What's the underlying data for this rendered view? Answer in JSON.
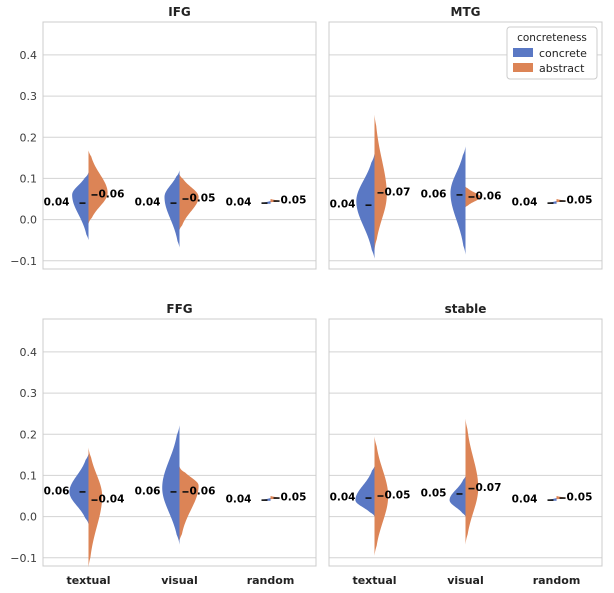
{
  "chart_data": {
    "type": "violin",
    "split_by": "concreteness",
    "categories": [
      "textual",
      "visual",
      "random"
    ],
    "ylim": [
      -0.12,
      0.48
    ],
    "yticks": [
      -0.1,
      0.0,
      0.1,
      0.2,
      0.3,
      0.4
    ],
    "ytick_labels": [
      "−0.1",
      "0.0",
      "0.1",
      "0.2",
      "0.3",
      "0.4"
    ],
    "legend": {
      "title": "concreteness",
      "placement": "top-right",
      "entries": [
        {
          "name": "concrete",
          "color": "#5a78c4"
        },
        {
          "name": "abstract",
          "color": "#dc8456"
        }
      ]
    },
    "panels": [
      {
        "title": "IFG",
        "groups": [
          {
            "category": "textual",
            "concrete": {
              "mean": 0.04,
              "label": "0.04",
              "min": -0.05,
              "max": 0.115,
              "peak": 0.06,
              "width": 0.36
            },
            "abstract": {
              "mean": 0.06,
              "label": "0.06",
              "min": -0.01,
              "max": 0.168,
              "peak": 0.065,
              "width": 0.42
            }
          },
          {
            "category": "visual",
            "concrete": {
              "mean": 0.04,
              "label": "0.04",
              "min": -0.068,
              "max": 0.12,
              "peak": 0.055,
              "width": 0.33
            },
            "abstract": {
              "mean": 0.05,
              "label": "0.05",
              "min": -0.025,
              "max": 0.11,
              "peak": 0.055,
              "width": 0.42
            }
          },
          {
            "category": "random",
            "concrete": {
              "mean": 0.04,
              "label": "0.04",
              "min": 0.038,
              "max": 0.045,
              "peak": 0.04,
              "width": 0.2
            },
            "abstract": {
              "mean": 0.045,
              "label": "0.05",
              "min": 0.042,
              "max": 0.05,
              "peak": 0.045,
              "width": 0.22
            }
          }
        ]
      },
      {
        "title": "MTG",
        "groups": [
          {
            "category": "textual",
            "concrete": {
              "mean": 0.035,
              "label": "0.04",
              "min": -0.095,
              "max": 0.16,
              "peak": 0.045,
              "width": 0.4
            },
            "abstract": {
              "mean": 0.065,
              "label": "0.07",
              "min": -0.075,
              "max": 0.255,
              "peak": 0.06,
              "width": 0.27
            }
          },
          {
            "category": "visual",
            "concrete": {
              "mean": 0.06,
              "label": "0.06",
              "min": -0.085,
              "max": 0.178,
              "peak": 0.065,
              "width": 0.33
            },
            "abstract": {
              "mean": 0.055,
              "label": "0.06",
              "min": 0.03,
              "max": 0.08,
              "peak": 0.055,
              "width": 0.33
            }
          },
          {
            "category": "random",
            "concrete": {
              "mean": 0.04,
              "label": "0.04",
              "min": 0.038,
              "max": 0.045,
              "peak": 0.04,
              "width": 0.2
            },
            "abstract": {
              "mean": 0.045,
              "label": "0.05",
              "min": 0.042,
              "max": 0.05,
              "peak": 0.045,
              "width": 0.22
            }
          }
        ]
      },
      {
        "title": "FFG",
        "groups": [
          {
            "category": "textual",
            "concrete": {
              "mean": 0.06,
              "label": "0.06",
              "min": -0.018,
              "max": 0.152,
              "peak": 0.06,
              "width": 0.42
            },
            "abstract": {
              "mean": 0.04,
              "label": "0.04",
              "min": -0.123,
              "max": 0.168,
              "peak": 0.05,
              "width": 0.3
            }
          },
          {
            "category": "visual",
            "concrete": {
              "mean": 0.06,
              "label": "0.06",
              "min": -0.068,
              "max": 0.222,
              "peak": 0.07,
              "width": 0.38
            },
            "abstract": {
              "mean": 0.06,
              "label": "0.06",
              "min": -0.058,
              "max": 0.122,
              "peak": 0.075,
              "width": 0.42
            }
          },
          {
            "category": "random",
            "concrete": {
              "mean": 0.04,
              "label": "0.04",
              "min": 0.038,
              "max": 0.045,
              "peak": 0.04,
              "width": 0.2
            },
            "abstract": {
              "mean": 0.045,
              "label": "0.05",
              "min": 0.042,
              "max": 0.05,
              "peak": 0.045,
              "width": 0.22
            }
          }
        ]
      },
      {
        "title": "stable",
        "groups": [
          {
            "category": "textual",
            "concrete": {
              "mean": 0.045,
              "label": "0.04",
              "min": 0.0,
              "max": 0.122,
              "peak": 0.04,
              "width": 0.42
            },
            "abstract": {
              "mean": 0.05,
              "label": "0.05",
              "min": -0.095,
              "max": 0.195,
              "peak": 0.05,
              "width": 0.3
            }
          },
          {
            "category": "visual",
            "concrete": {
              "mean": 0.055,
              "label": "0.05",
              "min": 0.0,
              "max": 0.098,
              "peak": 0.04,
              "width": 0.35
            },
            "abstract": {
              "mean": 0.068,
              "label": "0.07",
              "min": -0.068,
              "max": 0.238,
              "peak": 0.07,
              "width": 0.28
            }
          },
          {
            "category": "random",
            "concrete": {
              "mean": 0.04,
              "label": "0.04",
              "min": 0.038,
              "max": 0.045,
              "peak": 0.04,
              "width": 0.2
            },
            "abstract": {
              "mean": 0.045,
              "label": "0.05",
              "min": 0.042,
              "max": 0.05,
              "peak": 0.045,
              "width": 0.22
            }
          }
        ]
      }
    ]
  }
}
